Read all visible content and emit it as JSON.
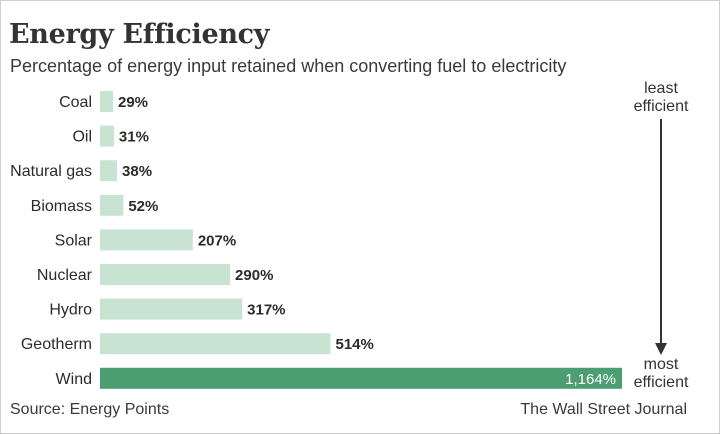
{
  "title": "Energy Efficiency",
  "subtitle": "Percentage of energy input retained when converting fuel to electricity",
  "annotations": {
    "top": [
      "least",
      "efficient"
    ],
    "bottom": [
      "most",
      "efficient"
    ]
  },
  "footer": {
    "source": "Source: Energy Points",
    "credit": "The Wall Street Journal"
  },
  "colors": {
    "bar_light": "#c9e3d3",
    "bar_highlight": "#4a9e71"
  },
  "chart_data": {
    "type": "bar",
    "orientation": "horizontal",
    "categories": [
      "Coal",
      "Oil",
      "Natural gas",
      "Biomass",
      "Solar",
      "Nuclear",
      "Hydro",
      "Geotherm",
      "Wind"
    ],
    "values": [
      29,
      31,
      38,
      52,
      207,
      290,
      317,
      514,
      1164
    ],
    "labels": [
      "29%",
      "31%",
      "38%",
      "52%",
      "207%",
      "290%",
      "317%",
      "514%",
      "1,164%"
    ],
    "highlight": "Wind",
    "xlim": [
      0,
      1164
    ],
    "grid": false,
    "legend": "none"
  }
}
